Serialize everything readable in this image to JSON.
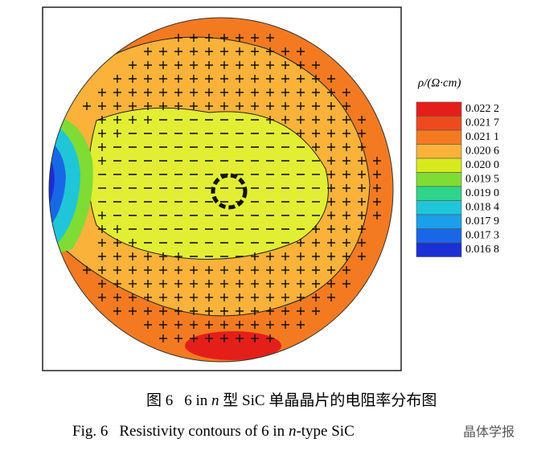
{
  "figure": {
    "colorbar": {
      "title": "ρ/(Ω·cm)",
      "levels": [
        {
          "label": "0.022 2",
          "color": "#e41f1a"
        },
        {
          "label": "0.021 7",
          "color": "#ee4a1e"
        },
        {
          "label": "0.021 1",
          "color": "#f47a22"
        },
        {
          "label": "0.020 6",
          "color": "#fbb23a"
        },
        {
          "label": "0.020 0",
          "color": "#d8ea1e"
        },
        {
          "label": "0.019 5",
          "color": "#7edc34"
        },
        {
          "label": "0.019 0",
          "color": "#2fd58a"
        },
        {
          "label": "0.018 4",
          "color": "#20c6d8"
        },
        {
          "label": "0.017 9",
          "color": "#1b9fe9"
        },
        {
          "label": "0.017 3",
          "color": "#1868e6"
        },
        {
          "label": "0.016 8",
          "color": "#1a2fd4"
        }
      ]
    }
  },
  "caption": {
    "zh": [
      "图 6",
      "6 in ",
      "n",
      " 型 SiC 单晶晶片的电阻率分布图"
    ],
    "en": [
      "Fig. 6",
      "Resistivity contours of 6 in ",
      "n",
      "-type SiC"
    ]
  },
  "watermark": "晶体学报"
}
